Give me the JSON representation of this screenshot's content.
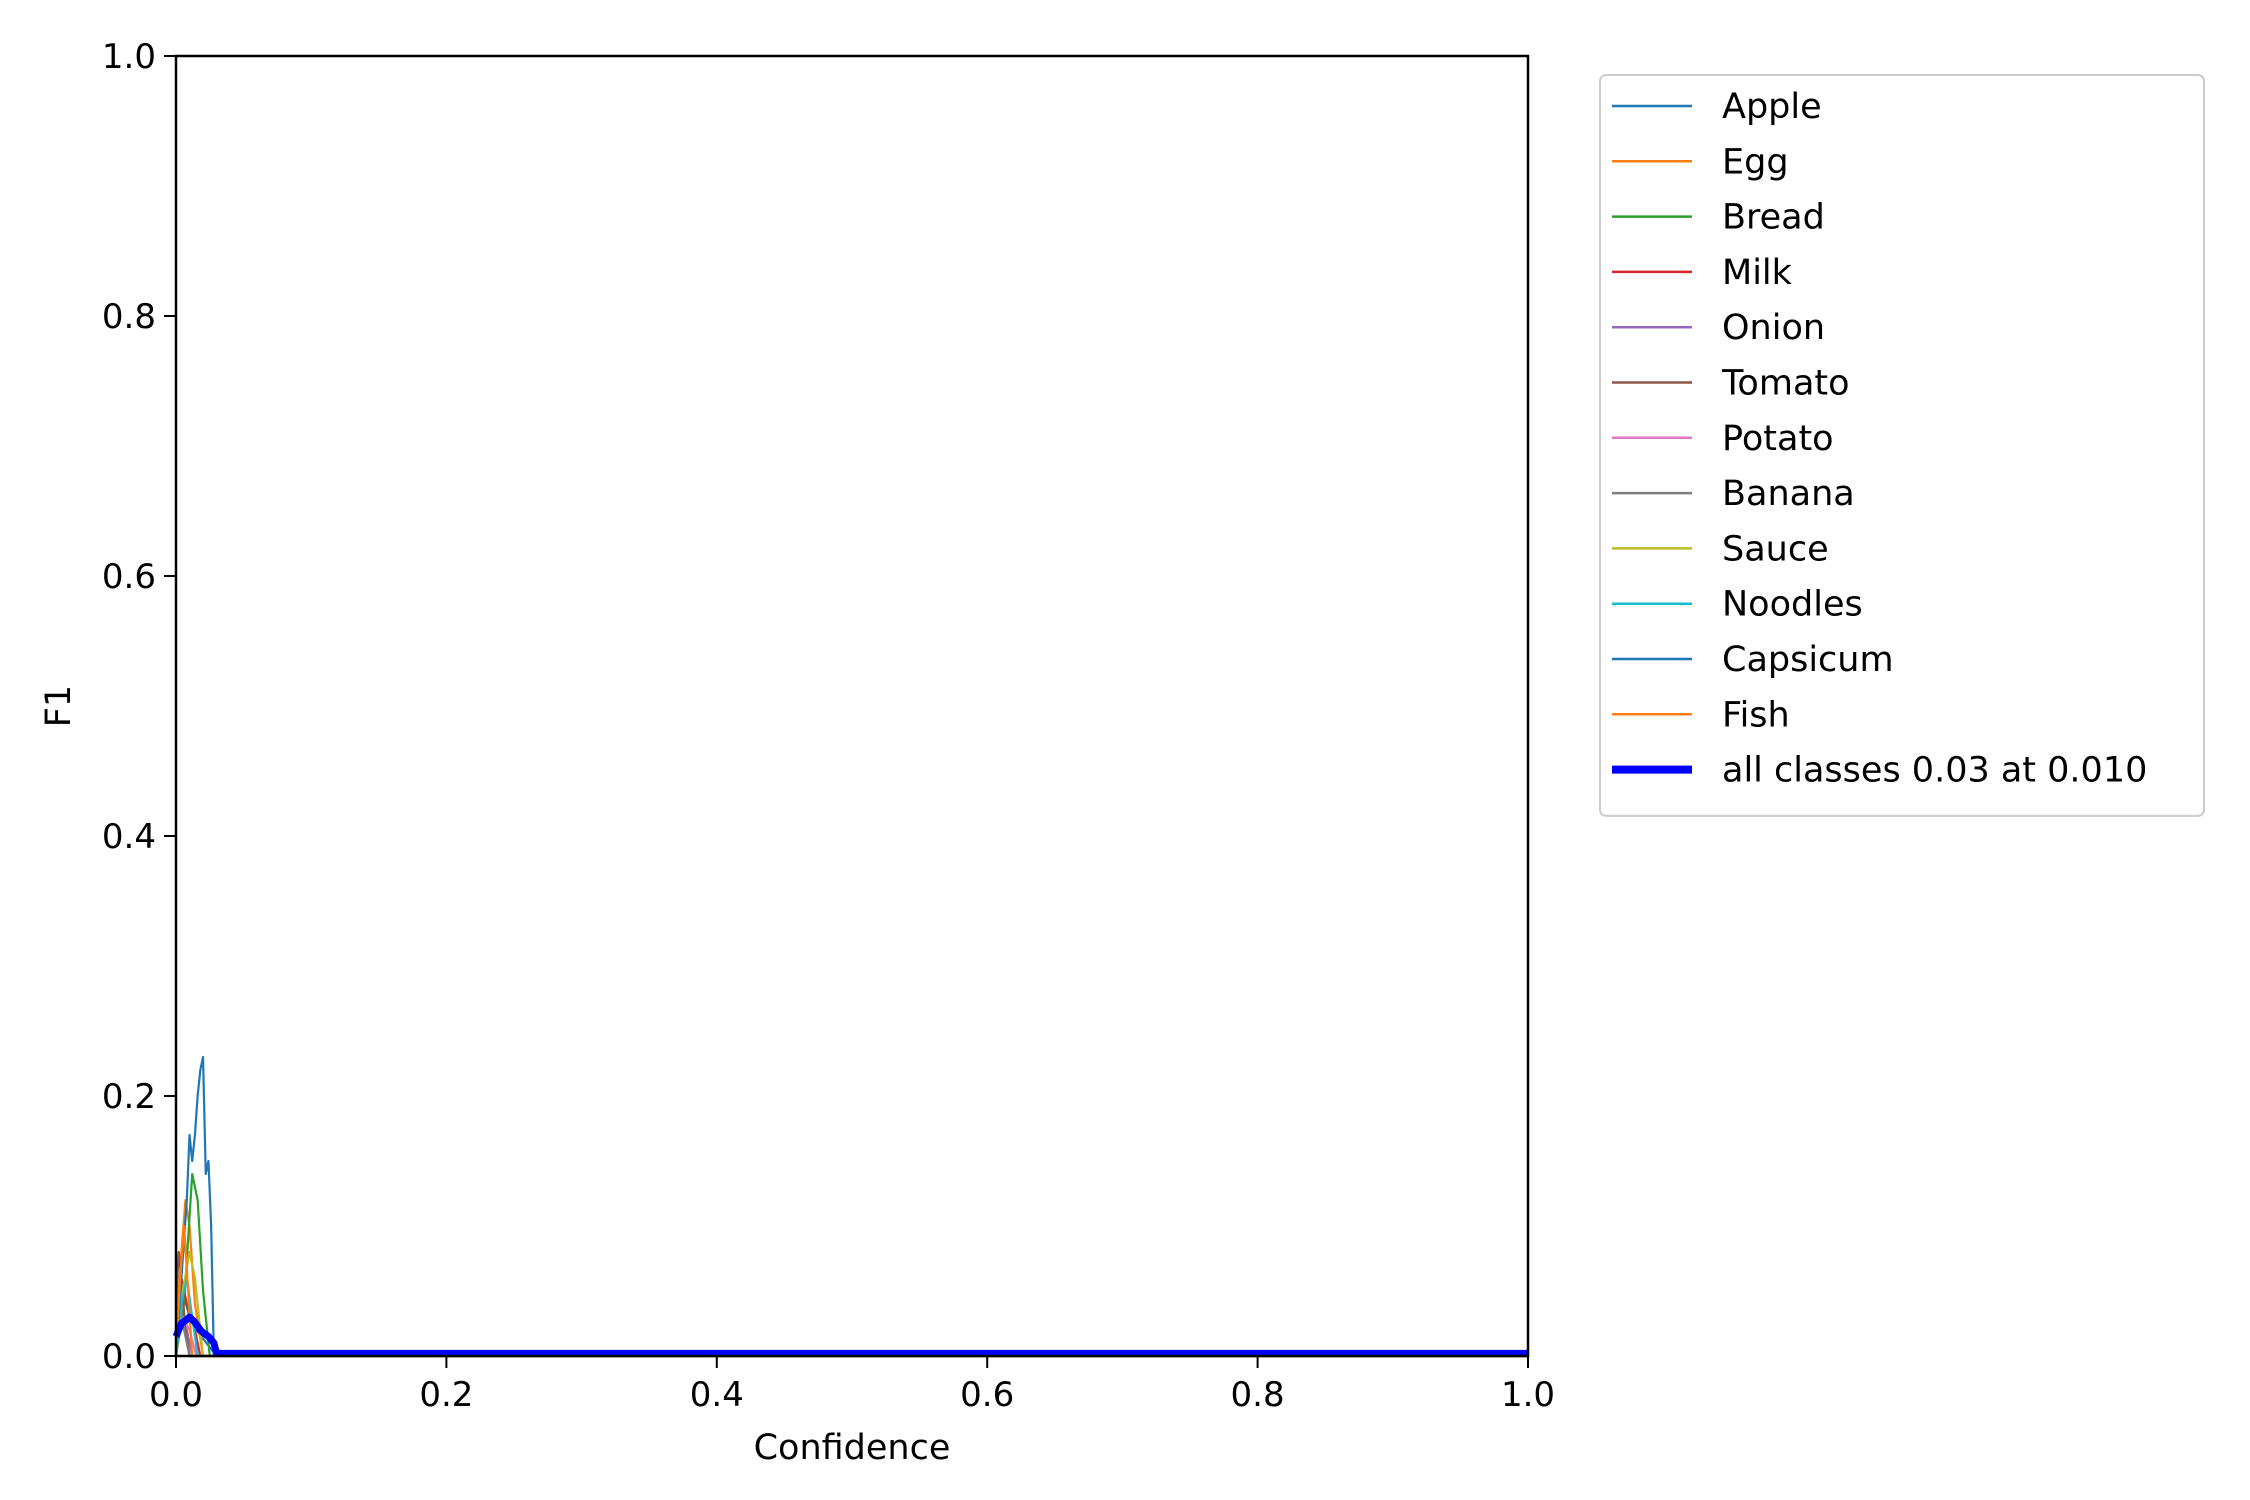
{
  "chart_data": {
    "type": "line",
    "title": "",
    "xlabel": "Confidence",
    "ylabel": "F1",
    "xlim": [
      0,
      1
    ],
    "ylim": [
      0,
      1
    ],
    "xticks": [
      0.0,
      0.2,
      0.4,
      0.6,
      0.8,
      1.0
    ],
    "xtick_labels": [
      "0.0",
      "0.2",
      "0.4",
      "0.6",
      "0.8",
      "1.0"
    ],
    "yticks": [
      0.0,
      0.2,
      0.4,
      0.6,
      0.8,
      1.0
    ],
    "ytick_labels": [
      "0.0",
      "0.2",
      "0.4",
      "0.6",
      "0.8",
      "1.0"
    ],
    "grid": false,
    "legend_position": "outside-top-right",
    "series": [
      {
        "name": "Apple",
        "color": "#1f77b4",
        "x": [
          0,
          0.005,
          0.01,
          0.015,
          0.03,
          1.0
        ],
        "y": [
          0.03,
          0.05,
          0.03,
          0.02,
          0.0,
          0.0
        ]
      },
      {
        "name": "Egg",
        "color": "#ff7f0e",
        "x": [
          0,
          0.004,
          0.007,
          0.01,
          0.014,
          0.02,
          1.0
        ],
        "y": [
          0.02,
          0.08,
          0.12,
          0.1,
          0.04,
          0.0,
          0.0
        ]
      },
      {
        "name": "Bread",
        "color": "#2ca02c",
        "x": [
          0,
          0.006,
          0.012,
          0.016,
          0.02,
          0.025,
          1.0
        ],
        "y": [
          0.0,
          0.04,
          0.14,
          0.12,
          0.05,
          0.0,
          0.0
        ]
      },
      {
        "name": "Milk",
        "color": "#d62728",
        "x": [
          0,
          0.004,
          0.008,
          0.012,
          0.018,
          1.0
        ],
        "y": [
          0.02,
          0.06,
          0.04,
          0.03,
          0.0,
          0.0
        ]
      },
      {
        "name": "Onion",
        "color": "#9467bd",
        "x": [
          0,
          0.004,
          0.008,
          0.012,
          1.0
        ],
        "y": [
          0.01,
          0.03,
          0.02,
          0.0,
          0.0
        ]
      },
      {
        "name": "Tomato",
        "color": "#8c564b",
        "x": [
          0,
          0.002,
          0.004,
          0.007,
          0.01,
          1.0
        ],
        "y": [
          0.04,
          0.08,
          0.06,
          0.02,
          0.0,
          0.0
        ]
      },
      {
        "name": "Potato",
        "color": "#e377c2",
        "x": [
          0,
          0.005,
          0.01,
          0.015,
          1.0
        ],
        "y": [
          0.01,
          0.03,
          0.02,
          0.0,
          0.0
        ]
      },
      {
        "name": "Banana",
        "color": "#7f7f7f",
        "x": [
          0,
          0.003,
          0.006,
          0.01,
          1.0
        ],
        "y": [
          0.01,
          0.04,
          0.02,
          0.0,
          0.0
        ]
      },
      {
        "name": "Sauce",
        "color": "#bcbd22",
        "x": [
          0,
          0.005,
          0.01,
          0.014,
          0.02,
          1.0
        ],
        "y": [
          0.0,
          0.05,
          0.08,
          0.06,
          0.0,
          0.0
        ]
      },
      {
        "name": "Noodles",
        "color": "#17becf",
        "x": [
          0,
          0.004,
          0.008,
          0.012,
          0.016,
          1.0
        ],
        "y": [
          0.0,
          0.04,
          0.06,
          0.03,
          0.0,
          0.0
        ]
      },
      {
        "name": "Capsicum",
        "color": "#1f77b4",
        "x": [
          0,
          0.004,
          0.008,
          0.01,
          0.012,
          0.014,
          0.016,
          0.018,
          0.02,
          0.022,
          0.024,
          0.026,
          0.028,
          0.03,
          1.0
        ],
        "y": [
          0.0,
          0.06,
          0.12,
          0.17,
          0.15,
          0.17,
          0.2,
          0.22,
          0.23,
          0.14,
          0.15,
          0.1,
          0.0,
          0.0,
          0.0
        ]
      },
      {
        "name": "Fish",
        "color": "#ff7f0e",
        "x": [
          0,
          0.003,
          0.006,
          0.009,
          0.012,
          1.0
        ],
        "y": [
          0.0,
          0.06,
          0.1,
          0.05,
          0.0,
          0.0
        ]
      },
      {
        "name": "all classes 0.03 at 0.010",
        "color": "#0000ff",
        "thick": true,
        "x": [
          0,
          0.004,
          0.008,
          0.01,
          0.014,
          0.018,
          0.02,
          0.024,
          0.028,
          0.03,
          1.0
        ],
        "y": [
          0.015,
          0.025,
          0.028,
          0.03,
          0.026,
          0.02,
          0.018,
          0.015,
          0.01,
          0.002,
          0.002
        ]
      }
    ]
  }
}
